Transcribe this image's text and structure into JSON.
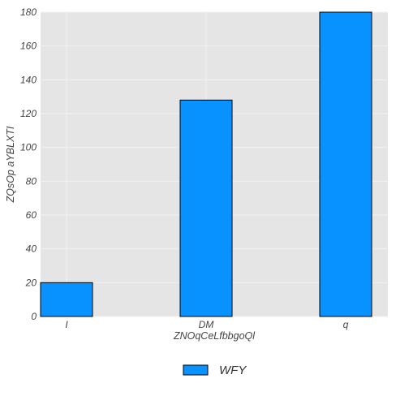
{
  "chart_data": {
    "type": "bar",
    "categories": [
      "I",
      "DM",
      "q"
    ],
    "series": [
      {
        "name": "WFY",
        "values": [
          20,
          128,
          180
        ]
      }
    ],
    "xlabel": "ZNOqCeLfbbgoQl",
    "ylabel": "ZQsOp aYBLXTI",
    "ylim": [
      0,
      180
    ],
    "yticks": [
      0,
      20,
      40,
      60,
      80,
      100,
      120,
      140,
      160,
      180
    ],
    "grid": true,
    "legend_position": "bottom-center",
    "colors": {
      "bar": "#0892ff",
      "bar_edge": "#000000",
      "plot_background": "#e5e5e5",
      "grid": "#f2f2f2"
    }
  }
}
